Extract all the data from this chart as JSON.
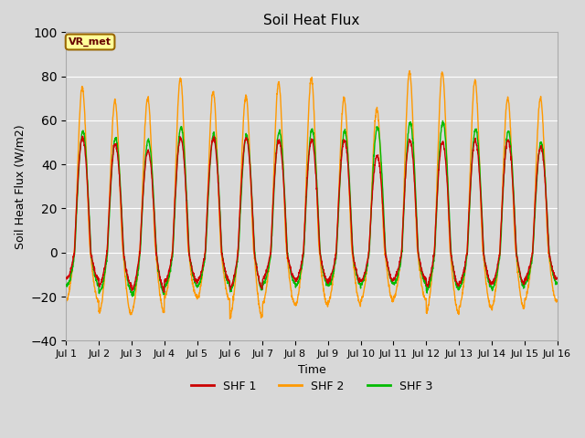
{
  "title": "Soil Heat Flux",
  "xlabel": "Time",
  "ylabel": "Soil Heat Flux (W/m2)",
  "ylim": [
    -40,
    100
  ],
  "yticks": [
    -40,
    -20,
    0,
    20,
    40,
    60,
    80,
    100
  ],
  "fig_bg_color": "#d8d8d8",
  "plot_bg_color": "#d8d8d8",
  "shf1_color": "#cc0000",
  "shf2_color": "#ff9900",
  "shf3_color": "#00bb00",
  "legend_label1": "SHF 1",
  "legend_label2": "SHF 2",
  "legend_label3": "SHF 3",
  "annotation_text": "VR_met",
  "annotation_bg": "#ffff99",
  "annotation_border": "#996600",
  "n_days": 15,
  "points_per_day": 144,
  "day_amps_shf1": [
    52,
    49,
    46,
    52,
    52,
    52,
    51,
    51,
    51,
    44,
    51,
    50,
    51,
    51,
    48
  ],
  "day_amps_shf2": [
    75,
    69,
    70,
    79,
    73,
    71,
    77,
    79,
    70,
    65,
    82,
    82,
    78,
    70,
    70
  ],
  "day_amps_shf3": [
    55,
    52,
    51,
    57,
    54,
    53,
    55,
    56,
    55,
    57,
    59,
    59,
    56,
    55,
    50
  ],
  "day_neg_shf1": [
    12,
    15,
    17,
    13,
    13,
    16,
    12,
    13,
    13,
    13,
    12,
    15,
    14,
    14,
    12
  ],
  "day_neg_shf2": [
    22,
    28,
    27,
    20,
    21,
    29,
    23,
    24,
    23,
    22,
    21,
    27,
    25,
    25,
    22
  ],
  "day_neg_shf3": [
    15,
    18,
    19,
    15,
    15,
    17,
    14,
    15,
    15,
    14,
    14,
    17,
    16,
    16,
    14
  ]
}
